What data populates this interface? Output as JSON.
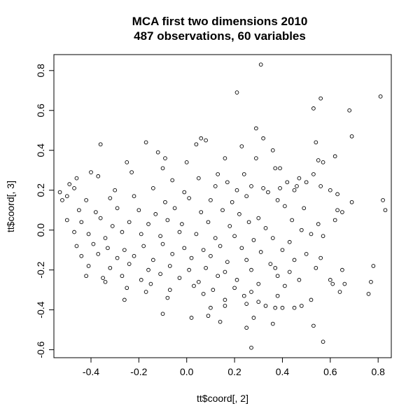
{
  "chart_data": {
    "type": "scatter",
    "title": "MCA first two dimensions 2010",
    "subtitle": "487 observations, 60 variables",
    "xlabel": "tt$coord[, 2]",
    "ylabel": "tt$coord[, 3]",
    "xlim": [
      -0.555,
      0.855
    ],
    "ylim": [
      -0.64,
      0.88
    ],
    "xticks": [
      -0.4,
      -0.2,
      0.0,
      0.2,
      0.4,
      0.6,
      0.8
    ],
    "xtick_labels": [
      "-0.4",
      "-0.2",
      "0.0",
      "0.2",
      "0.4",
      "0.6",
      "0.8"
    ],
    "yticks": [
      -0.6,
      -0.4,
      -0.2,
      0.0,
      0.2,
      0.4,
      0.6,
      0.8
    ],
    "ytick_labels": [
      "-0.6",
      "-0.4",
      "-0.2",
      "0.0",
      "0.2",
      "0.4",
      "0.6",
      "0.8"
    ],
    "grid": false,
    "marker": "open-circle",
    "color": "#000000",
    "points": [
      [
        0.31,
        0.83
      ],
      [
        0.21,
        0.69
      ],
      [
        0.81,
        0.67
      ],
      [
        0.56,
        0.66
      ],
      [
        0.53,
        0.61
      ],
      [
        0.68,
        0.6
      ],
      [
        0.29,
        0.51
      ],
      [
        0.69,
        0.47
      ],
      [
        0.06,
        0.46
      ],
      [
        0.08,
        0.45
      ],
      [
        0.32,
        0.46
      ],
      [
        -0.17,
        0.44
      ],
      [
        0.23,
        0.42
      ],
      [
        -0.36,
        0.43
      ],
      [
        0.04,
        0.43
      ],
      [
        -0.12,
        0.39
      ],
      [
        0.36,
        0.4
      ],
      [
        0.62,
        0.37
      ],
      [
        0.54,
        0.44
      ],
      [
        0.57,
        0.34
      ],
      [
        -0.09,
        0.36
      ],
      [
        0.0,
        0.34
      ],
      [
        0.16,
        0.36
      ],
      [
        0.29,
        0.36
      ],
      [
        0.55,
        0.35
      ],
      [
        -0.25,
        0.34
      ],
      [
        -0.1,
        0.31
      ],
      [
        0.37,
        0.31
      ],
      [
        -0.23,
        0.29
      ],
      [
        0.39,
        0.31
      ],
      [
        0.47,
        0.26
      ],
      [
        0.53,
        0.28
      ],
      [
        -0.46,
        0.26
      ],
      [
        -0.06,
        0.25
      ],
      [
        0.13,
        0.28
      ],
      [
        0.24,
        0.28
      ],
      [
        0.42,
        0.24
      ],
      [
        0.39,
        0.21
      ],
      [
        0.46,
        0.22
      ],
      [
        0.5,
        0.24
      ],
      [
        0.56,
        0.22
      ],
      [
        -0.4,
        0.29
      ],
      [
        -0.37,
        0.27
      ],
      [
        0.05,
        0.26
      ],
      [
        0.12,
        0.22
      ],
      [
        0.17,
        0.24
      ],
      [
        0.27,
        0.22
      ],
      [
        0.32,
        0.21
      ],
      [
        -0.49,
        0.23
      ],
      [
        -0.47,
        0.21
      ],
      [
        -0.3,
        0.2
      ],
      [
        -0.14,
        0.21
      ],
      [
        -0.01,
        0.19
      ],
      [
        0.21,
        0.2
      ],
      [
        0.34,
        0.19
      ],
      [
        0.45,
        0.2
      ],
      [
        0.6,
        0.2
      ],
      [
        0.63,
        0.18
      ],
      [
        0.82,
        0.15
      ],
      [
        0.83,
        0.1
      ],
      [
        0.69,
        0.14
      ],
      [
        -0.53,
        0.19
      ],
      [
        -0.5,
        0.17
      ],
      [
        -0.42,
        0.15
      ],
      [
        -0.32,
        0.16
      ],
      [
        -0.22,
        0.17
      ],
      [
        -0.09,
        0.14
      ],
      [
        0.01,
        0.16
      ],
      [
        0.1,
        0.15
      ],
      [
        0.19,
        0.14
      ],
      [
        0.25,
        0.17
      ],
      [
        0.38,
        0.15
      ],
      [
        0.41,
        0.12
      ],
      [
        0.49,
        0.11
      ],
      [
        0.63,
        0.1
      ],
      [
        0.65,
        0.09
      ],
      [
        -0.52,
        0.15
      ],
      [
        -0.45,
        0.1
      ],
      [
        -0.38,
        0.09
      ],
      [
        -0.29,
        0.11
      ],
      [
        -0.2,
        0.1
      ],
      [
        -0.13,
        0.08
      ],
      [
        -0.05,
        0.11
      ],
      [
        0.06,
        0.09
      ],
      [
        0.15,
        0.1
      ],
      [
        0.22,
        0.08
      ],
      [
        0.3,
        0.06
      ],
      [
        0.44,
        0.05
      ],
      [
        0.55,
        0.03
      ],
      [
        0.62,
        0.05
      ],
      [
        -0.5,
        0.05
      ],
      [
        -0.44,
        0.04
      ],
      [
        -0.36,
        0.06
      ],
      [
        -0.31,
        0.02
      ],
      [
        -0.24,
        0.04
      ],
      [
        -0.16,
        0.03
      ],
      [
        -0.08,
        0.05
      ],
      [
        -0.02,
        0.03
      ],
      [
        0.09,
        0.04
      ],
      [
        0.18,
        0.02
      ],
      [
        0.26,
        0.04
      ],
      [
        0.33,
        0.01
      ],
      [
        0.48,
        0.0
      ],
      [
        0.52,
        -0.02
      ],
      [
        0.57,
        -0.03
      ],
      [
        -0.47,
        -0.01
      ],
      [
        -0.41,
        -0.02
      ],
      [
        -0.34,
        -0.04
      ],
      [
        -0.27,
        -0.01
      ],
      [
        -0.19,
        -0.02
      ],
      [
        -0.11,
        -0.03
      ],
      [
        -0.03,
        -0.01
      ],
      [
        0.04,
        -0.02
      ],
      [
        0.12,
        -0.04
      ],
      [
        0.2,
        -0.03
      ],
      [
        0.28,
        -0.05
      ],
      [
        0.36,
        -0.04
      ],
      [
        0.43,
        -0.06
      ],
      [
        -0.46,
        -0.08
      ],
      [
        -0.39,
        -0.07
      ],
      [
        -0.33,
        -0.09
      ],
      [
        -0.26,
        -0.1
      ],
      [
        -0.18,
        -0.08
      ],
      [
        -0.1,
        -0.07
      ],
      [
        -0.01,
        -0.09
      ],
      [
        0.07,
        -0.1
      ],
      [
        0.14,
        -0.08
      ],
      [
        0.23,
        -0.09
      ],
      [
        0.31,
        -0.11
      ],
      [
        0.4,
        -0.1
      ],
      [
        0.5,
        -0.12
      ],
      [
        -0.44,
        -0.13
      ],
      [
        -0.37,
        -0.12
      ],
      [
        -0.29,
        -0.14
      ],
      [
        -0.22,
        -0.13
      ],
      [
        -0.14,
        -0.15
      ],
      [
        -0.06,
        -0.12
      ],
      [
        0.02,
        -0.14
      ],
      [
        0.1,
        -0.13
      ],
      [
        0.17,
        -0.16
      ],
      [
        0.25,
        -0.15
      ],
      [
        0.35,
        -0.17
      ],
      [
        0.45,
        -0.15
      ],
      [
        0.56,
        -0.14
      ],
      [
        -0.41,
        -0.18
      ],
      [
        -0.32,
        -0.19
      ],
      [
        -0.24,
        -0.17
      ],
      [
        -0.16,
        -0.2
      ],
      [
        -0.07,
        -0.18
      ],
      [
        0.01,
        -0.2
      ],
      [
        0.08,
        -0.19
      ],
      [
        0.16,
        -0.21
      ],
      [
        0.27,
        -0.2
      ],
      [
        0.37,
        -0.19
      ],
      [
        0.43,
        -0.21
      ],
      [
        0.54,
        -0.19
      ],
      [
        0.78,
        -0.18
      ],
      [
        0.65,
        -0.2
      ],
      [
        -0.42,
        -0.23
      ],
      [
        -0.35,
        -0.24
      ],
      [
        -0.27,
        -0.23
      ],
      [
        -0.19,
        -0.25
      ],
      [
        -0.11,
        -0.22
      ],
      [
        -0.03,
        -0.24
      ],
      [
        0.05,
        -0.26
      ],
      [
        0.13,
        -0.23
      ],
      [
        0.21,
        -0.25
      ],
      [
        0.3,
        -0.27
      ],
      [
        0.38,
        -0.23
      ],
      [
        0.47,
        -0.25
      ],
      [
        0.6,
        -0.25
      ],
      [
        0.61,
        -0.27
      ],
      [
        0.66,
        -0.27
      ],
      [
        0.77,
        -0.26
      ],
      [
        -0.34,
        -0.26
      ],
      [
        -0.25,
        -0.29
      ],
      [
        -0.15,
        -0.27
      ],
      [
        -0.07,
        -0.3
      ],
      [
        0.03,
        -0.28
      ],
      [
        0.11,
        -0.3
      ],
      [
        0.2,
        -0.29
      ],
      [
        0.27,
        -0.31
      ],
      [
        0.41,
        -0.28
      ],
      [
        0.64,
        -0.31
      ],
      [
        0.76,
        -0.32
      ],
      [
        -0.26,
        -0.35
      ],
      [
        -0.17,
        -0.31
      ],
      [
        -0.08,
        -0.34
      ],
      [
        0.07,
        -0.32
      ],
      [
        0.16,
        -0.35
      ],
      [
        0.24,
        -0.33
      ],
      [
        0.38,
        -0.33
      ],
      [
        0.52,
        -0.35
      ],
      [
        0.1,
        -0.39
      ],
      [
        0.16,
        -0.38
      ],
      [
        0.25,
        -0.37
      ],
      [
        0.3,
        -0.36
      ],
      [
        0.33,
        -0.38
      ],
      [
        0.37,
        -0.39
      ],
      [
        0.4,
        -0.39
      ],
      [
        0.45,
        -0.39
      ],
      [
        0.48,
        -0.38
      ],
      [
        -0.1,
        -0.42
      ],
      [
        0.02,
        -0.44
      ],
      [
        0.09,
        -0.43
      ],
      [
        0.14,
        -0.46
      ],
      [
        0.28,
        -0.44
      ],
      [
        0.36,
        -0.47
      ],
      [
        0.53,
        -0.48
      ],
      [
        0.25,
        -0.49
      ],
      [
        0.57,
        -0.56
      ],
      [
        0.27,
        -0.59
      ]
    ]
  }
}
